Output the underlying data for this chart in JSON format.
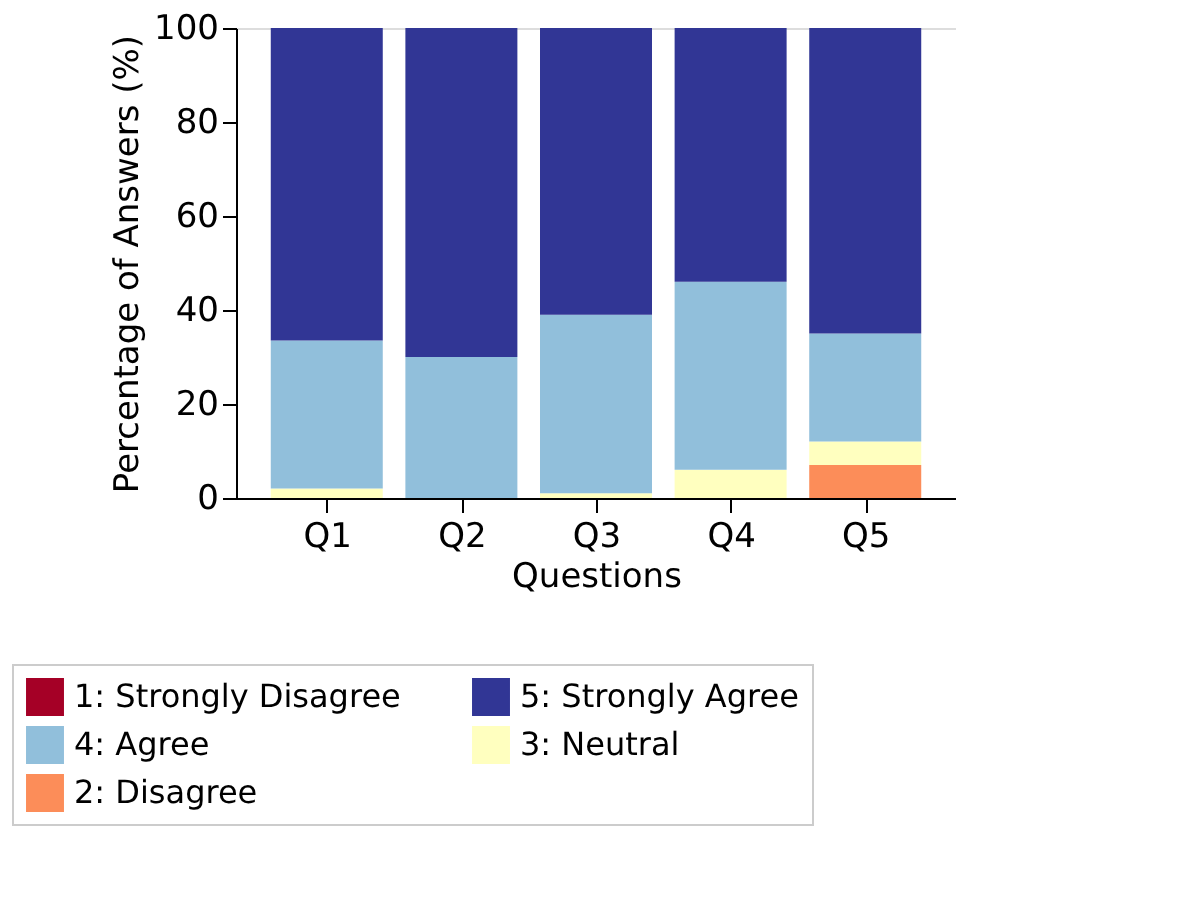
{
  "chart_data": {
    "type": "bar",
    "stacked": true,
    "xlabel": "Questions",
    "ylabel": "Percentage of Answers (%)",
    "categories": [
      "Q1",
      "Q2",
      "Q3",
      "Q4",
      "Q5"
    ],
    "series": [
      {
        "name": "1: Strongly Disagree",
        "color": "#a50026",
        "values": [
          0,
          0,
          0,
          0,
          0
        ]
      },
      {
        "name": "2: Disagree",
        "color": "#fc8d59",
        "values": [
          0,
          0,
          0,
          0,
          7
        ]
      },
      {
        "name": "3: Neutral",
        "color": "#ffffbf",
        "values": [
          2,
          0,
          1,
          6,
          5
        ]
      },
      {
        "name": "4: Agree",
        "color": "#91bfdb",
        "values": [
          31.5,
          30,
          38,
          40,
          23
        ]
      },
      {
        "name": "5: Strongly Agree",
        "color": "#313695",
        "values": [
          66.5,
          70,
          61,
          54,
          65
        ]
      }
    ],
    "ylim": [
      0,
      100
    ],
    "yticks": [
      0,
      20,
      40,
      60,
      80,
      100
    ],
    "grid": false,
    "legend": "bottom"
  }
}
